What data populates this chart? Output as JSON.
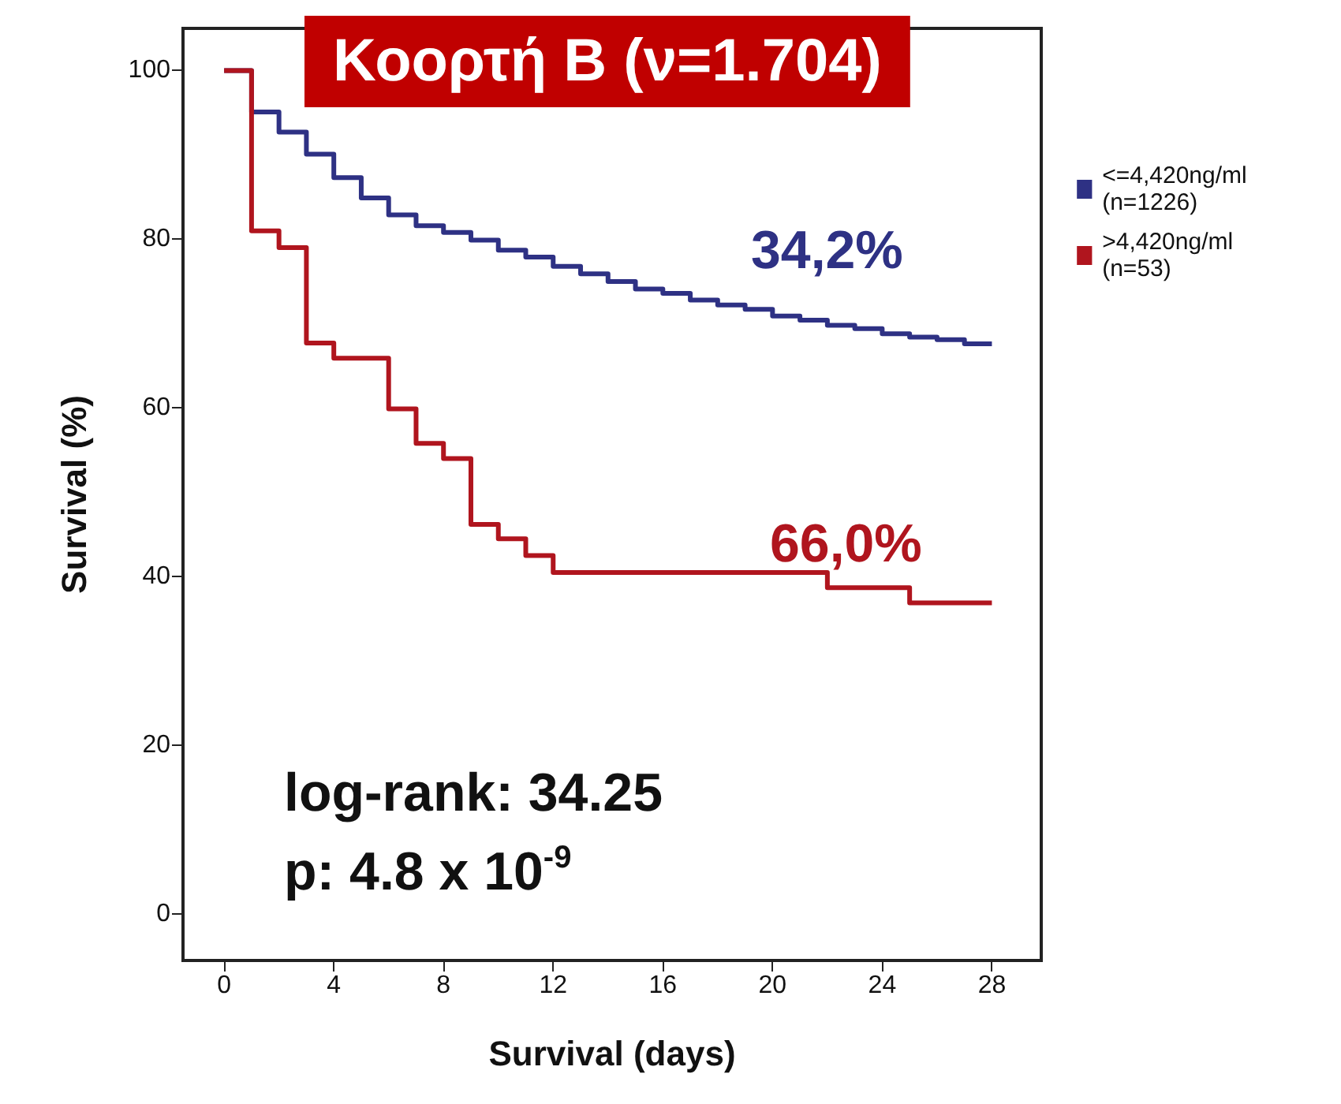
{
  "chart_data": {
    "type": "step",
    "title": "Κοορτή Β (ν=1.704)",
    "xlabel": "Survival (days)",
    "ylabel": "Survival (%)",
    "xlim": [
      -1.5,
      29.8
    ],
    "ylim": [
      -5.5,
      105
    ],
    "xticks": [
      0,
      4,
      8,
      12,
      16,
      20,
      24,
      28
    ],
    "yticks": [
      0,
      20,
      40,
      60,
      80,
      100
    ],
    "grid": false,
    "legend": "right",
    "marker": "none",
    "line_style": "solid",
    "series": [
      {
        "name": "<=4,420ng/ml\n(n=1226)",
        "color": "#2e3184",
        "x": [
          0,
          1,
          2,
          3,
          4,
          5,
          6,
          7,
          8,
          9,
          10,
          11,
          12,
          13,
          14,
          15,
          16,
          17,
          18,
          19,
          20,
          21,
          22,
          23,
          24,
          25,
          26,
          27,
          28
        ],
        "values": [
          100,
          95.1,
          92.7,
          90.1,
          87.3,
          84.9,
          82.9,
          81.6,
          80.8,
          79.9,
          78.7,
          77.9,
          76.8,
          75.9,
          75.0,
          74.1,
          73.6,
          72.8,
          72.2,
          71.7,
          70.9,
          70.4,
          69.8,
          69.4,
          68.8,
          68.4,
          68.1,
          67.6,
          67.6
        ]
      },
      {
        "name": ">4,420ng/ml\n(n=53)",
        "color": "#b0151e",
        "x": [
          0,
          1,
          2,
          3,
          4,
          6,
          7,
          8,
          9,
          10,
          11,
          12,
          22,
          25,
          28
        ],
        "values": [
          100,
          81.0,
          79.0,
          67.7,
          65.9,
          59.9,
          55.8,
          54.0,
          46.2,
          44.5,
          42.5,
          40.5,
          38.7,
          36.9,
          36.9
        ]
      }
    ],
    "annotations": [
      "34,2%",
      "66,0%",
      "log-rank: 34.25",
      "p: 4.8 x 10$^{-9}$"
    ]
  }
}
